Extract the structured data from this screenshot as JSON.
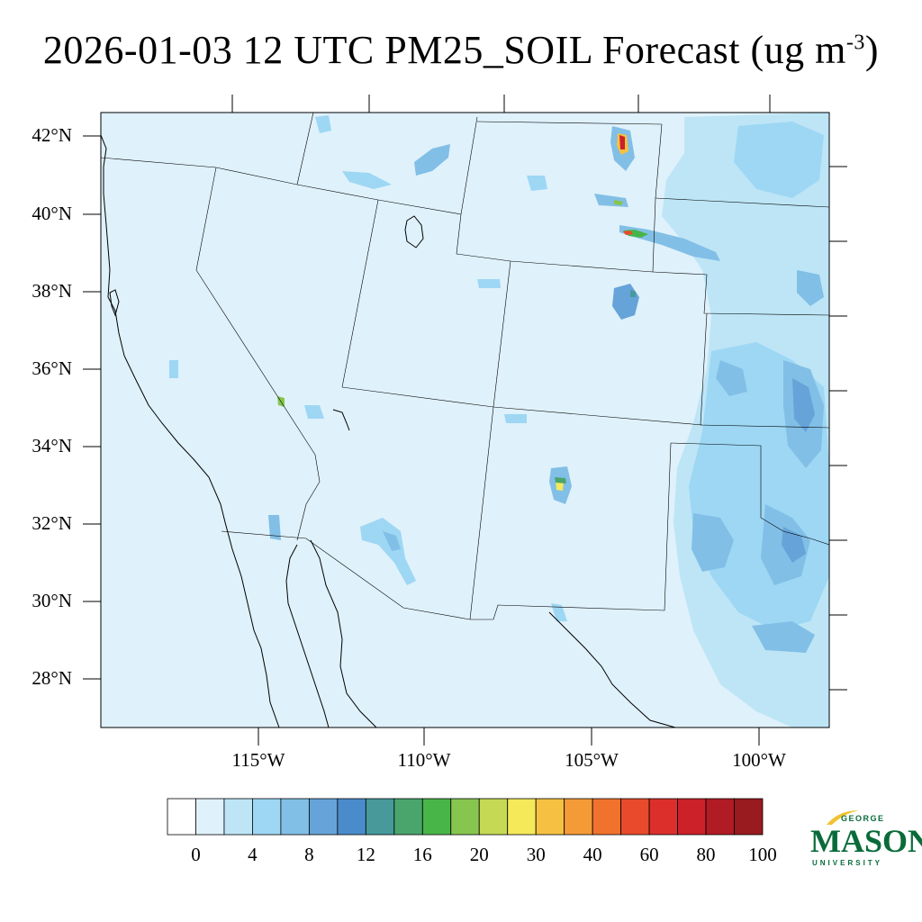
{
  "title": {
    "main": "2026-01-03 12 UTC PM25_SOIL Forecast (ug m",
    "superscript": "-3",
    "close": ")"
  },
  "latitude_labels": [
    "42°N",
    "40°N",
    "38°N",
    "36°N",
    "34°N",
    "32°N",
    "30°N",
    "28°N"
  ],
  "longitude_labels": [
    "115°W",
    "110°W",
    "105°W",
    "100°W"
  ],
  "colorbar": {
    "labels": [
      "0",
      "4",
      "8",
      "12",
      "16",
      "20",
      "30",
      "40",
      "60",
      "80",
      "100"
    ],
    "colors": [
      "#ffffff",
      "#dff1fb",
      "#bde5f6",
      "#9dd7f4",
      "#82bfe6",
      "#66a3d9",
      "#4a8bcc",
      "#47999a",
      "#4aa56d",
      "#48b548",
      "#86c64f",
      "#c5d954",
      "#f5e95a",
      "#f6c143",
      "#f49a37",
      "#f1722c",
      "#e84a2b",
      "#dc2f2c",
      "#cc2129",
      "#b11b24",
      "#991a1f"
    ]
  },
  "map": {
    "background_color": "#dff1fb",
    "low_concentration_color": "#bde5f6",
    "moderate_concentration_color": "#82bfe6",
    "high_concentration_color": "#4a8bcc"
  },
  "logo": {
    "line1": "GEORGE",
    "line2": "MASON",
    "line3": "UNIVERSITY",
    "brand_color": "#0a6b3a",
    "accent_color": "#f2c230"
  }
}
